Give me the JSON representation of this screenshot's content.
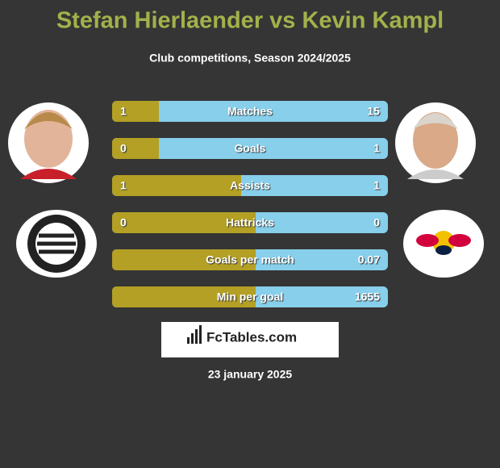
{
  "header": {
    "title": "Stefan Hierlaender vs Kevin Kampl",
    "subtitle": "Club competitions, Season 2024/2025"
  },
  "rows": [
    {
      "label": "Matches",
      "left": "1",
      "right": "15"
    },
    {
      "label": "Goals",
      "left": "0",
      "right": "1"
    },
    {
      "label": "Assists",
      "left": "1",
      "right": "1"
    },
    {
      "label": "Hattricks",
      "left": "0",
      "right": "0"
    },
    {
      "label": "Goals per match",
      "right": "0.07"
    },
    {
      "label": "Min per goal",
      "right": "1655"
    }
  ],
  "brand": "FcTables.com",
  "date": "23 january 2025"
}
